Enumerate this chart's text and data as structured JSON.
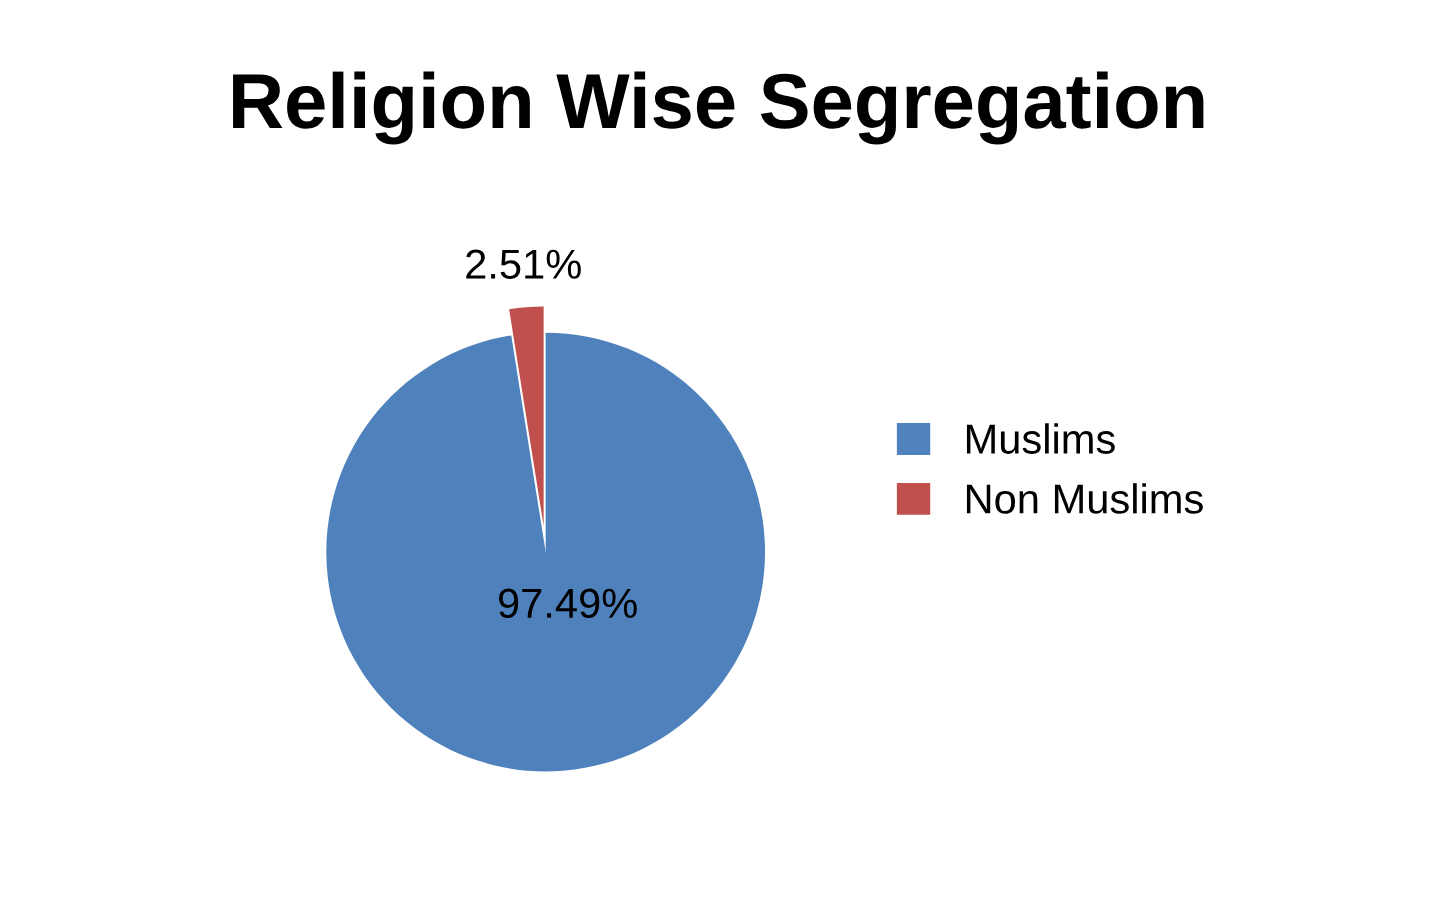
{
  "chart_data": {
    "type": "pie",
    "title": "Religion Wise Segregation",
    "categories": [
      "Muslims",
      "Non Muslims"
    ],
    "values": [
      97.49,
      2.51
    ],
    "colors": [
      "#4f81bd",
      "#c0504d"
    ],
    "value_labels": [
      "97.49%",
      "2.51%"
    ],
    "legend": "right"
  }
}
